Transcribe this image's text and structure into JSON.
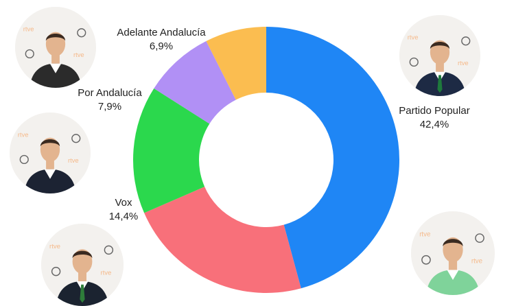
{
  "chart_data": {
    "type": "donut",
    "start_angle_deg": 0,
    "direction": "clockwise",
    "series": [
      {
        "name": "Partido Popular",
        "value": 42.4,
        "value_label": "42,4%",
        "color": "#1f86f5"
      },
      {
        "name": "",
        "value": 21.0,
        "value_label": "",
        "color": "#f8707a"
      },
      {
        "name": "Vox",
        "value": 14.4,
        "value_label": "14,4%",
        "color": "#2bd84d"
      },
      {
        "name": "Por Andalucía",
        "value": 7.9,
        "value_label": "7,9%",
        "color": "#b190f5"
      },
      {
        "name": "Adelante Andalucía",
        "value": 6.9,
        "value_label": "6,9%",
        "color": "#fbbd50"
      }
    ]
  },
  "portraits": [
    {
      "name": "partido-popular",
      "suit": "#1d2a44",
      "tie": "#1e7a3c",
      "backdrop_logo": "rtve"
    },
    {
      "name": "adelante-andalucia",
      "suit": "#2b2b2b",
      "tie": "",
      "backdrop_logo": "rtve"
    },
    {
      "name": "por-andalucia",
      "suit": "#1c2333",
      "tie": "",
      "backdrop_logo": "rtve"
    },
    {
      "name": "vox",
      "suit": "#1b2330",
      "tie": "#2e7d3a",
      "backdrop_logo": "rtve"
    },
    {
      "name": "psoe",
      "suit": "#7fd39a",
      "tie": "",
      "backdrop_logo": "rtve"
    }
  ]
}
